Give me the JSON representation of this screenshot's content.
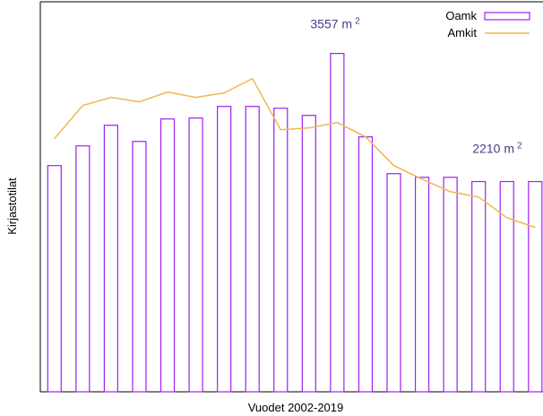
{
  "chart_data": {
    "type": "bar",
    "x_label": "Vuodet 2002-2019",
    "y_label": "Kirjastotilat",
    "categories": [
      null,
      null,
      null,
      null,
      null,
      null,
      null,
      null,
      null,
      null,
      null,
      null,
      null,
      null,
      null,
      null,
      null,
      null
    ],
    "series": [
      {
        "name": "Oamk",
        "type": "bar",
        "color": "#a020f0",
        "values": [
          2378,
          2585,
          2802,
          2632,
          2868,
          2878,
          3000,
          3000,
          2981,
          2906,
          3557,
          2680,
          2293,
          2255,
          2255,
          2210,
          2210,
          2210
        ]
      },
      {
        "name": "Amkit",
        "type": "line",
        "color": "#f0b850",
        "values": [
          2661,
          3010,
          3095,
          3048,
          3151,
          3095,
          3142,
          3293,
          2755,
          2774,
          2831,
          2680,
          2378,
          2236,
          2104,
          2047,
          1830,
          1727
        ]
      }
    ],
    "ylim": [
      0,
      4100
    ],
    "legend": "top-right",
    "annotations": [
      {
        "text": "3557 m",
        "sup": "2",
        "series": 0,
        "index": 10
      },
      {
        "text": "2210 m",
        "sup": "2",
        "series": 0,
        "index": 17
      }
    ]
  }
}
